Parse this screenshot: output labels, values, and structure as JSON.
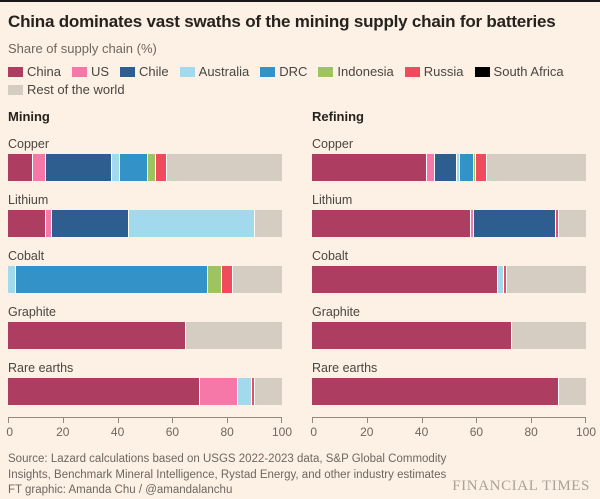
{
  "header": {
    "title": "China dominates vast swaths of the mining supply chain for batteries",
    "subtitle": "Share of supply chain (%)"
  },
  "legend": {
    "items": [
      {
        "name": "China",
        "label": "China",
        "color": "#ae3d62"
      },
      {
        "name": "US",
        "label": "US",
        "color": "#f678a8"
      },
      {
        "name": "Chile",
        "label": "Chile",
        "color": "#2e5e8f"
      },
      {
        "name": "Australia",
        "label": "Australia",
        "color": "#a3d9ec"
      },
      {
        "name": "DRC",
        "label": "DRC",
        "color": "#3392c8"
      },
      {
        "name": "Indonesia",
        "label": "Indonesia",
        "color": "#9ec462"
      },
      {
        "name": "Russia",
        "label": "Russia",
        "color": "#ef4b5d"
      },
      {
        "name": "South Africa",
        "label": "South Africa",
        "color": "#000000"
      },
      {
        "name": "Rest of the world",
        "label": "Rest of the world",
        "color": "#d6cdc2"
      }
    ]
  },
  "chart_data": {
    "type": "bar",
    "orientation": "horizontal-stacked",
    "unit": "%",
    "xlim": [
      0,
      100
    ],
    "x_ticks": [
      0,
      20,
      40,
      60,
      80,
      100
    ],
    "grid": false,
    "legend_position": "top",
    "panels": [
      {
        "title": "Mining",
        "rows": [
          {
            "label": "Copper",
            "segments": [
              {
                "name": "China",
                "value": 9
              },
              {
                "name": "US",
                "value": 5
              },
              {
                "name": "Chile",
                "value": 24
              },
              {
                "name": "Australia",
                "value": 3
              },
              {
                "name": "DRC",
                "value": 10
              },
              {
                "name": "Indonesia",
                "value": 3
              },
              {
                "name": "Russia",
                "value": 4
              },
              {
                "name": "Rest of the world",
                "value": 42
              }
            ]
          },
          {
            "label": "Lithium",
            "segments": [
              {
                "name": "China",
                "value": 14
              },
              {
                "name": "US",
                "value": 2
              },
              {
                "name": "Chile",
                "value": 28
              },
              {
                "name": "Australia",
                "value": 46
              },
              {
                "name": "Rest of the world",
                "value": 10
              }
            ]
          },
          {
            "label": "Cobalt",
            "segments": [
              {
                "name": "Australia",
                "value": 3
              },
              {
                "name": "DRC",
                "value": 70
              },
              {
                "name": "Indonesia",
                "value": 5
              },
              {
                "name": "Russia",
                "value": 4
              },
              {
                "name": "Rest of the world",
                "value": 18
              }
            ]
          },
          {
            "label": "Graphite",
            "segments": [
              {
                "name": "China",
                "value": 65
              },
              {
                "name": "Rest of the world",
                "value": 35
              }
            ]
          },
          {
            "label": "Rare earths",
            "segments": [
              {
                "name": "China",
                "value": 70
              },
              {
                "name": "US",
                "value": 14
              },
              {
                "name": "Australia",
                "value": 5
              },
              {
                "name": "Russia",
                "value": 1
              },
              {
                "name": "Rest of the world",
                "value": 10
              }
            ]
          }
        ]
      },
      {
        "title": "Refining",
        "rows": [
          {
            "label": "Copper",
            "segments": [
              {
                "name": "China",
                "value": 42
              },
              {
                "name": "US",
                "value": 3
              },
              {
                "name": "Chile",
                "value": 8
              },
              {
                "name": "Australia",
                "value": 1
              },
              {
                "name": "DRC",
                "value": 5
              },
              {
                "name": "Indonesia",
                "value": 1
              },
              {
                "name": "Russia",
                "value": 4
              },
              {
                "name": "Rest of the world",
                "value": 36
              }
            ]
          },
          {
            "label": "Lithium",
            "segments": [
              {
                "name": "China",
                "value": 58
              },
              {
                "name": "US",
                "value": 1
              },
              {
                "name": "Chile",
                "value": 30
              },
              {
                "name": "Russia",
                "value": 1
              },
              {
                "name": "Rest of the world",
                "value": 10
              }
            ]
          },
          {
            "label": "Cobalt",
            "segments": [
              {
                "name": "China",
                "value": 68
              },
              {
                "name": "Australia",
                "value": 2
              },
              {
                "name": "Russia",
                "value": 1
              },
              {
                "name": "Rest of the world",
                "value": 29
              }
            ]
          },
          {
            "label": "Graphite",
            "segments": [
              {
                "name": "China",
                "value": 73
              },
              {
                "name": "Rest of the world",
                "value": 27
              }
            ]
          },
          {
            "label": "Rare earths",
            "segments": [
              {
                "name": "China",
                "value": 90
              },
              {
                "name": "Rest of the world",
                "value": 10
              }
            ]
          }
        ]
      }
    ]
  },
  "footer": {
    "source": "Source: Lazard calculations based on USGS 2022-2023 data, S&P Global Commodity Insights, Benchmark Mineral Intelligence, Rystad Energy, and other industry estimates",
    "credit": "FT graphic: Amanda Chu / @amandalanchu",
    "logo": "FINANCIAL TIMES"
  }
}
